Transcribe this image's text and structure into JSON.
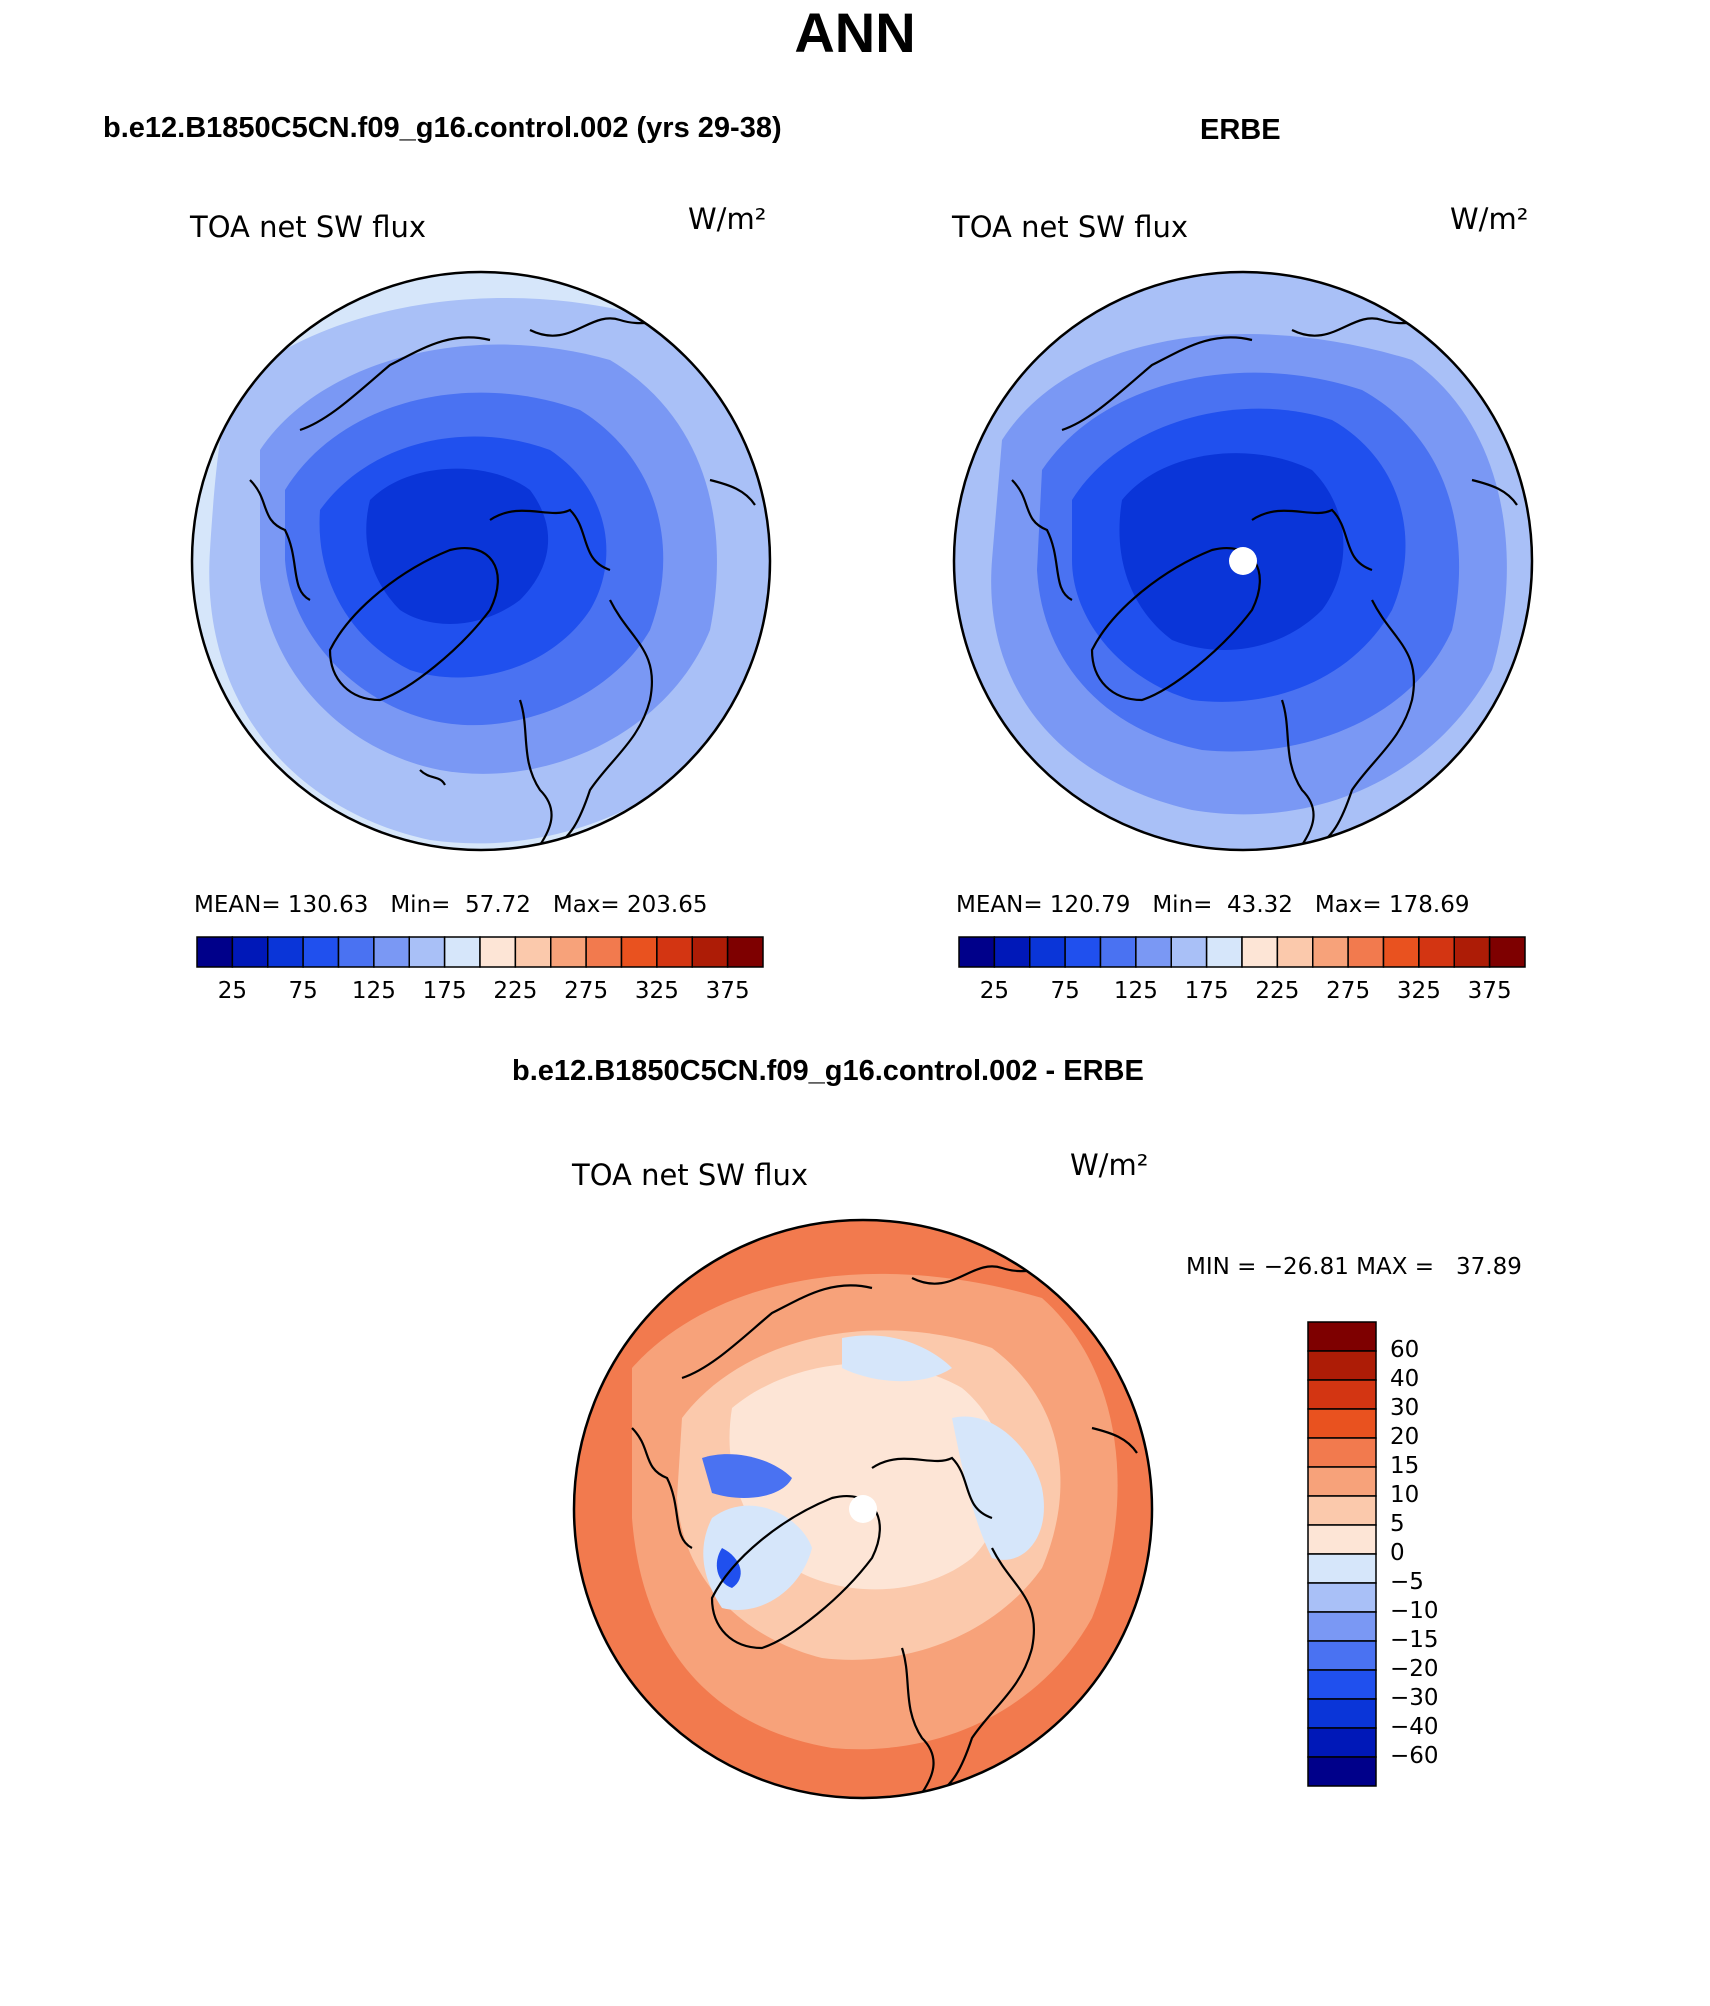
{
  "title": "ANN",
  "colors": {
    "scale": [
      "#00008a",
      "#0018b8",
      "#0a35d8",
      "#2050ee",
      "#4a72f2",
      "#7a98f4",
      "#a9c0f7",
      "#d6e6fa",
      "#fde5d6",
      "#fbc9ac",
      "#f7a27a",
      "#f27a4e",
      "#e9521f",
      "#d33512",
      "#ad1c06",
      "#7e0000"
    ],
    "diff_scale": [
      "#00008a",
      "#0018b8",
      "#0a35d8",
      "#2050ee",
      "#4a72f2",
      "#7a98f4",
      "#a9c0f7",
      "#d6e6fa",
      "#fde5d6",
      "#fbc9ac",
      "#f7a27a",
      "#f27a4e",
      "#e9521f",
      "#d33512",
      "#ad1c06",
      "#7e0000"
    ]
  },
  "panels": {
    "model": {
      "heading": "b.e12.B1850C5CN.f09_g16.control.002 (yrs 29-38)",
      "variable": "TOA net SW flux",
      "units": "W/m²",
      "stats": {
        "mean_label": "MEAN=",
        "mean": "130.63",
        "min_label": "Min=",
        "min": "57.72",
        "max_label": "Max=",
        "max": "203.65"
      },
      "ticks": [
        "25",
        "75",
        "125",
        "175",
        "225",
        "275",
        "325",
        "375"
      ]
    },
    "obs": {
      "heading": "ERBE",
      "variable": "TOA net SW flux",
      "units": "W/m²",
      "stats": {
        "mean_label": "MEAN=",
        "mean": "120.79",
        "min_label": "Min=",
        "min": "43.32",
        "max_label": "Max=",
        "max": "178.69"
      },
      "ticks": [
        "25",
        "75",
        "125",
        "175",
        "225",
        "275",
        "325",
        "375"
      ]
    },
    "diff": {
      "heading": "b.e12.B1850C5CN.f09_g16.control.002 - ERBE",
      "variable": "TOA net SW flux",
      "units": "W/m²",
      "minmax": "MIN = −26.81 MAX =   37.89",
      "levels": [
        "60",
        "40",
        "30",
        "20",
        "15",
        "10",
        "5",
        "0",
        "−5",
        "−10",
        "−15",
        "−20",
        "−30",
        "−40",
        "−60"
      ]
    }
  }
}
